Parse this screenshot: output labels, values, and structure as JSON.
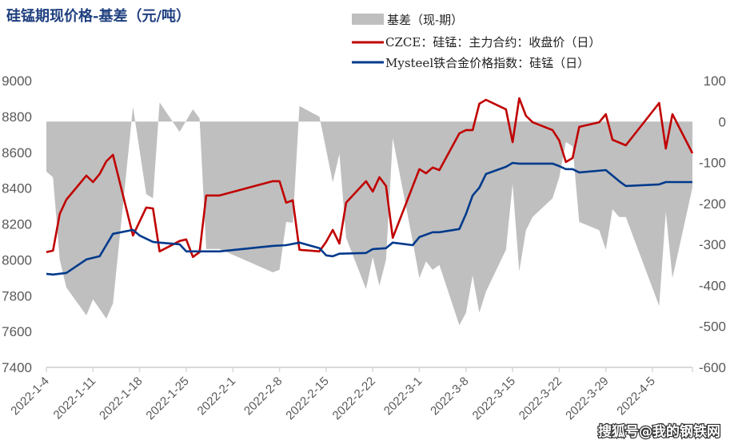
{
  "chart_data": {
    "type": "line",
    "title": "硅锰期现价格-基差（元/吨）",
    "grid": false,
    "legend_position": "top-right",
    "y_left": {
      "lim": [
        7400,
        9000
      ],
      "ticks": [
        "9000",
        "8800",
        "8600",
        "8400",
        "8200",
        "8000",
        "7800",
        "7600",
        "7400"
      ]
    },
    "y_right": {
      "lim": [
        -600,
        100
      ],
      "ticks": [
        "100",
        "0",
        "-100",
        "-200",
        "-300",
        "-400",
        "-500",
        "-600"
      ]
    },
    "x_ticks": [
      "2022-1-4",
      "2022-1-11",
      "2022-1-18",
      "2022-1-25",
      "2022-2-1",
      "2022-2-8",
      "2022-2-15",
      "2022-2-22",
      "2022-3-1",
      "2022-3-8",
      "2022-3-15",
      "2022-3-22",
      "2022-3-29",
      "2022-4-5"
    ],
    "x_end": "2022-4-11",
    "series": [
      {
        "name": "基差（现-期）",
        "type": "area",
        "axis": "right",
        "color": "#bfbfbf",
        "points": [
          [
            "01-04",
            -122
          ],
          [
            "01-05",
            -136
          ],
          [
            "01-06",
            -337
          ],
          [
            "01-07",
            -405
          ],
          [
            "01-10",
            -473
          ],
          [
            "01-11",
            -434
          ],
          [
            "01-13",
            -481
          ],
          [
            "01-14",
            -444
          ],
          [
            "01-17",
            36
          ],
          [
            "01-19",
            -177
          ],
          [
            "01-20",
            -187
          ],
          [
            "01-21",
            47
          ],
          [
            "01-24",
            -25
          ],
          [
            "01-26",
            30
          ],
          [
            "01-27",
            8
          ],
          [
            "01-28",
            -311
          ],
          [
            "01-30",
            -311
          ],
          [
            "02-07",
            -368
          ],
          [
            "02-08",
            -362
          ],
          [
            "02-09",
            -245
          ],
          [
            "02-10",
            -247
          ],
          [
            "02-11",
            38
          ],
          [
            "02-14",
            12
          ],
          [
            "02-16",
            -148
          ],
          [
            "02-17",
            -79
          ],
          [
            "02-18",
            -284
          ],
          [
            "02-21",
            -409
          ],
          [
            "02-22",
            -331
          ],
          [
            "02-23",
            -401
          ],
          [
            "02-24",
            -337
          ],
          [
            "02-25",
            -40
          ],
          [
            "02-28",
            -292
          ],
          [
            "03-01",
            -382
          ],
          [
            "03-02",
            -341
          ],
          [
            "03-03",
            -362
          ],
          [
            "03-04",
            -350
          ],
          [
            "03-07",
            -497
          ],
          [
            "03-08",
            -467
          ],
          [
            "03-09",
            -376
          ],
          [
            "03-10",
            -467
          ],
          [
            "03-11",
            -415
          ],
          [
            "03-14",
            -313
          ],
          [
            "03-15",
            -152
          ],
          [
            "03-16",
            -366
          ],
          [
            "03-17",
            -265
          ],
          [
            "03-18",
            -233
          ],
          [
            "03-21",
            -187
          ],
          [
            "03-22",
            -136
          ],
          [
            "03-23",
            -50
          ],
          [
            "03-24",
            -60
          ],
          [
            "03-25",
            -245
          ],
          [
            "03-28",
            -265
          ],
          [
            "03-29",
            -313
          ],
          [
            "03-30",
            -214
          ],
          [
            "03-31",
            -233
          ],
          [
            "04-01",
            -233
          ],
          [
            "04-06",
            -450
          ],
          [
            "04-07",
            -220
          ],
          [
            "04-08",
            -382
          ],
          [
            "04-11",
            -161
          ]
        ]
      },
      {
        "name": "CZCE：硅锰：主力合约：收盘价（日）",
        "type": "line",
        "axis": "left",
        "color": "#c00000",
        "points": [
          [
            "01-04",
            8043
          ],
          [
            "01-05",
            8051
          ],
          [
            "01-06",
            8256
          ],
          [
            "01-07",
            8336
          ],
          [
            "01-10",
            8470
          ],
          [
            "01-11",
            8434
          ],
          [
            "01-12",
            8479
          ],
          [
            "01-13",
            8550
          ],
          [
            "01-14",
            8586
          ],
          [
            "01-17",
            8136
          ],
          [
            "01-19",
            8292
          ],
          [
            "01-20",
            8287
          ],
          [
            "01-21",
            8047
          ],
          [
            "01-24",
            8105
          ],
          [
            "01-25",
            8114
          ],
          [
            "01-26",
            8016
          ],
          [
            "01-27",
            8043
          ],
          [
            "01-28",
            8359
          ],
          [
            "01-30",
            8359
          ],
          [
            "02-07",
            8439
          ],
          [
            "02-08",
            8439
          ],
          [
            "02-09",
            8319
          ],
          [
            "02-10",
            8332
          ],
          [
            "02-11",
            8056
          ],
          [
            "02-14",
            8047
          ],
          [
            "02-15",
            8100
          ],
          [
            "02-16",
            8167
          ],
          [
            "02-17",
            8091
          ],
          [
            "02-18",
            8319
          ],
          [
            "02-21",
            8439
          ],
          [
            "02-22",
            8381
          ],
          [
            "02-23",
            8461
          ],
          [
            "02-24",
            8412
          ],
          [
            "02-25",
            8123
          ],
          [
            "03-01",
            8506
          ],
          [
            "03-02",
            8483
          ],
          [
            "03-03",
            8515
          ],
          [
            "03-04",
            8501
          ],
          [
            "03-07",
            8706
          ],
          [
            "03-08",
            8724
          ],
          [
            "03-09",
            8724
          ],
          [
            "03-10",
            8871
          ],
          [
            "03-11",
            8893
          ],
          [
            "03-14",
            8840
          ],
          [
            "03-15",
            8657
          ],
          [
            "03-16",
            8902
          ],
          [
            "03-17",
            8804
          ],
          [
            "03-18",
            8768
          ],
          [
            "03-21",
            8724
          ],
          [
            "03-22",
            8666
          ],
          [
            "03-23",
            8546
          ],
          [
            "03-24",
            8568
          ],
          [
            "03-25",
            8742
          ],
          [
            "03-28",
            8768
          ],
          [
            "03-29",
            8813
          ],
          [
            "03-30",
            8670
          ],
          [
            "04-01",
            8639
          ],
          [
            "04-06",
            8875
          ],
          [
            "04-07",
            8621
          ],
          [
            "04-08",
            8813
          ],
          [
            "04-11",
            8595
          ]
        ]
      },
      {
        "name": "Mysteel铁合金价格指数：硅锰（日）",
        "type": "line",
        "axis": "left",
        "color": "#003a8c",
        "points": [
          [
            "01-04",
            7922
          ],
          [
            "01-05",
            7918
          ],
          [
            "01-07",
            7927
          ],
          [
            "01-10",
            8002
          ],
          [
            "01-12",
            8020
          ],
          [
            "01-14",
            8145
          ],
          [
            "01-17",
            8167
          ],
          [
            "01-18",
            8136
          ],
          [
            "01-20",
            8100
          ],
          [
            "01-21",
            8096
          ],
          [
            "01-24",
            8087
          ],
          [
            "01-25",
            8047
          ],
          [
            "01-27",
            8047
          ],
          [
            "01-30",
            8047
          ],
          [
            "02-07",
            8078
          ],
          [
            "02-09",
            8082
          ],
          [
            "02-11",
            8096
          ],
          [
            "02-14",
            8065
          ],
          [
            "02-15",
            8025
          ],
          [
            "02-16",
            8020
          ],
          [
            "02-17",
            8034
          ],
          [
            "02-21",
            8038
          ],
          [
            "02-22",
            8060
          ],
          [
            "02-24",
            8065
          ],
          [
            "02-25",
            8096
          ],
          [
            "02-28",
            8082
          ],
          [
            "03-01",
            8127
          ],
          [
            "03-03",
            8154
          ],
          [
            "03-04",
            8154
          ],
          [
            "03-07",
            8172
          ],
          [
            "03-08",
            8256
          ],
          [
            "03-09",
            8359
          ],
          [
            "03-10",
            8403
          ],
          [
            "03-11",
            8479
          ],
          [
            "03-14",
            8519
          ],
          [
            "03-15",
            8541
          ],
          [
            "03-16",
            8537
          ],
          [
            "03-21",
            8537
          ],
          [
            "03-22",
            8523
          ],
          [
            "03-23",
            8506
          ],
          [
            "03-24",
            8506
          ],
          [
            "03-25",
            8488
          ],
          [
            "03-29",
            8501
          ],
          [
            "03-31",
            8439
          ],
          [
            "04-01",
            8412
          ],
          [
            "04-06",
            8421
          ],
          [
            "04-07",
            8434
          ],
          [
            "04-11",
            8434
          ]
        ]
      }
    ]
  },
  "watermark": "搜狐号@我的钢铁网"
}
